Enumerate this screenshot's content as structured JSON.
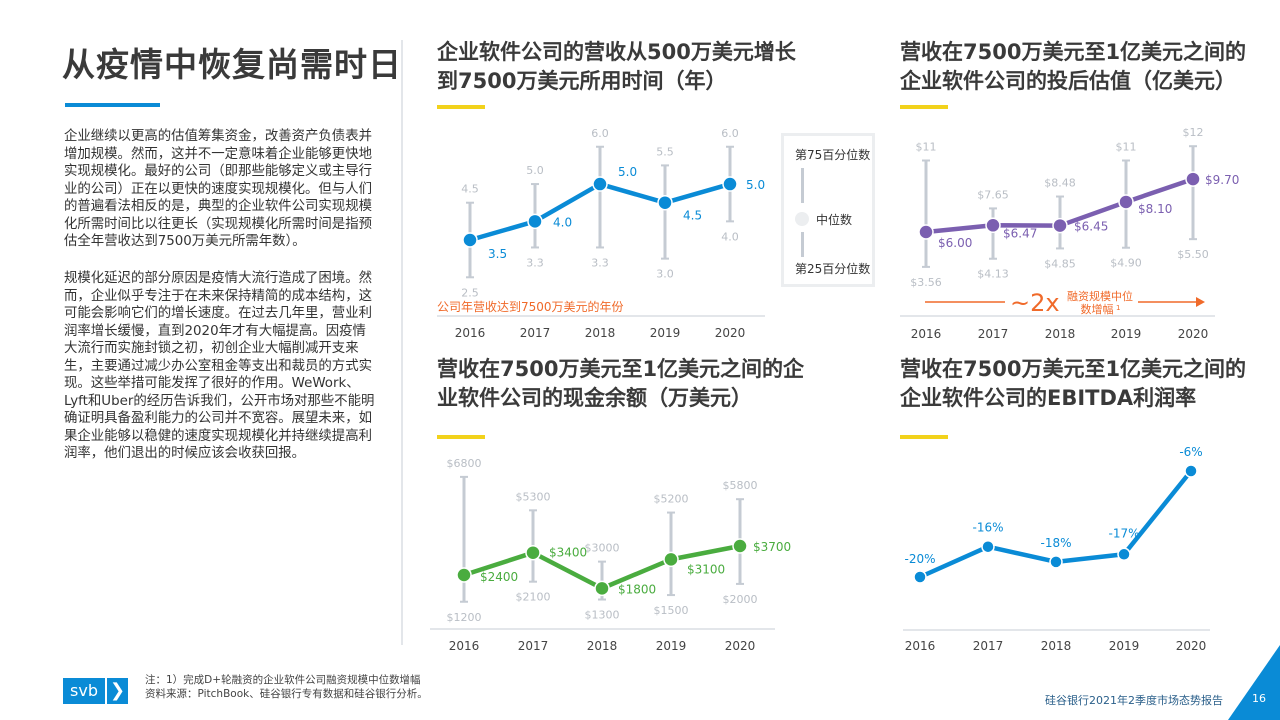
{
  "title": "从疫情中恢复尚需时日",
  "paragraphs": [
    "企业继续以更高的估值筹集资金，改善资产负债表并增加规模。然而，这并不一定意味着企业能够更快地实现规模化。最好的公司（即那些能够定义或主导行业的公司）正在以更快的速度实现规模化。但与人们的普遍看法相反的是，典型的企业软件公司实现规模化所需时间比以往更长（实现规模化所需时间是指预估全年营收达到7500万美元所需年数）。",
    "规模化延迟的部分原因是疫情大流行造成了困境。然而，企业似乎专注于在未来保持精简的成本结构，这可能会影响它们的增长速度。在过去几年里，营业利润率增长缓慢，直到2020年才有大幅提高。因疫情大流行而实施封锁之初，初创企业大幅削减开支来生，主要通过减少办公室租金等支出和裁员的方式实现。这些举措可能发挥了很好的作用。WeWork、Lyft和Uber的经历告诉我们，公开市场对那些不能明确证明具备盈利能力的公司并不宽容。展望未来，如果企业能够以稳健的速度实现规模化并持继续提高利润率，他们退出的时候应该会收获回报。"
  ],
  "legend": {
    "p75": "第75百分位数",
    "median": "中位数",
    "p25": "第25百分位数"
  },
  "colors": {
    "blue": "#0a8bd6",
    "purple": "#7b5fb0",
    "green": "#4aac3f",
    "orange": "#f06a2a",
    "yellow": "#f2d21b",
    "error_bar": "#c5cbd3",
    "range_label": "#b9bec5"
  },
  "chart_data": [
    {
      "id": "time-to-75m",
      "type": "line",
      "title": "企业软件公司的营收从500万美元增长到7500万美元所用时间（年）",
      "title_lines": [
        "企业软件公司的营收从500万美元增长",
        "到7500万美元所用时间（年）"
      ],
      "categories": [
        "2016",
        "2017",
        "2018",
        "2019",
        "2020"
      ],
      "median": [
        3.5,
        4.0,
        5.0,
        4.5,
        5.0
      ],
      "p75": [
        4.5,
        5.0,
        6.0,
        5.5,
        6.0
      ],
      "p25": [
        2.5,
        3.3,
        3.3,
        3.0,
        4.0
      ],
      "median_labels": [
        "3.5",
        "4.0",
        "5.0",
        "4.5",
        "5.0"
      ],
      "p75_labels": [
        "4.5",
        "5.0",
        "6.0",
        "5.5",
        "6.0"
      ],
      "p25_labels": [
        "2.5",
        "3.3",
        "3.3",
        "3.0",
        "4.0"
      ],
      "xlabel": "公司年营收达到7500万美元的年份",
      "color": "#0a8bd6"
    },
    {
      "id": "post-money-valuation",
      "type": "line",
      "title": "营收在7500万美元至1亿美元之间的企业软件公司的投后估值（亿美元）",
      "title_lines": [
        "营收在7500万美元至1亿美元之间的",
        "企业软件公司的投后估值（亿美元）"
      ],
      "categories": [
        "2016",
        "2017",
        "2018",
        "2019",
        "2020"
      ],
      "median": [
        6.0,
        6.47,
        6.45,
        8.1,
        9.7
      ],
      "p75": [
        11,
        7.65,
        8.48,
        11,
        12
      ],
      "p25": [
        3.56,
        4.13,
        4.85,
        4.9,
        5.5
      ],
      "median_labels": [
        "$6.00",
        "$6.47",
        "$6.45",
        "$8.10",
        "$9.70"
      ],
      "p75_labels": [
        "$11",
        "$7.65",
        "$8.48",
        "$11",
        "$12"
      ],
      "p25_labels": [
        "$3.56",
        "$4.13",
        "$4.85",
        "$4.90",
        "$5.50"
      ],
      "annotation": {
        "multiplier": "~2x",
        "text_line1": "融资规模中位",
        "text_line2": "数增幅",
        "footnote": "1"
      },
      "color": "#7b5fb0"
    },
    {
      "id": "cash-balance",
      "type": "line",
      "title": "营收在7500万美元至1亿美元之间的企业软件公司的现金余额（万美元）",
      "title_lines": [
        "营收在7500万美元至1亿美元之间的企",
        "业软件公司的现金余额（万美元）"
      ],
      "categories": [
        "2016",
        "2017",
        "2018",
        "2019",
        "2020"
      ],
      "median": [
        2400,
        3400,
        1800,
        3100,
        3700
      ],
      "p75": [
        6800,
        5300,
        3000,
        5200,
        5800
      ],
      "p25": [
        1200,
        2100,
        1300,
        1500,
        2000
      ],
      "median_labels": [
        "$2400",
        "$3400",
        "$1800",
        "$3100",
        "$3700"
      ],
      "p75_labels": [
        "$6800",
        "$5300",
        "$3000",
        "$5200",
        "$5800"
      ],
      "p25_labels": [
        "$1200",
        "$2100",
        "$1300",
        "$1500",
        "$2000"
      ],
      "color": "#4aac3f"
    },
    {
      "id": "ebitda-margin",
      "type": "line",
      "title": "营收在7500万美元至1亿美元之间的企业软件公司的EBITDA利润率",
      "title_lines": [
        "营收在7500万美元至1亿美元之间的",
        "企业软件公司的EBITDA利润率"
      ],
      "categories": [
        "2016",
        "2017",
        "2018",
        "2019",
        "2020"
      ],
      "median": [
        -20,
        -16,
        -18,
        -17,
        -6
      ],
      "median_labels": [
        "-20%",
        "-16%",
        "-18%",
        "-17%",
        "-6%"
      ],
      "color": "#0a8bd6"
    }
  ],
  "footer": {
    "logo_text": "svb",
    "note": "注：1）完成D+轮融资的企业软件公司融资规模中位数增幅",
    "source": "资料来源：PitchBook、硅谷银行专有数据和硅谷银行分析。",
    "report": "硅谷银行2021年2季度市场态势报告",
    "page": "16"
  }
}
